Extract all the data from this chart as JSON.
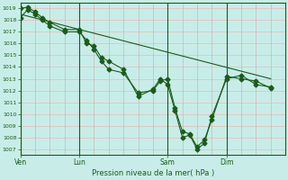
{
  "title": "",
  "xlabel": "Pression niveau de la mer( hPa )",
  "ylim": [
    1006.5,
    1019.5
  ],
  "yticks": [
    1007,
    1008,
    1009,
    1010,
    1011,
    1012,
    1013,
    1014,
    1015,
    1016,
    1017,
    1018,
    1019
  ],
  "bg_color": "#c8ede8",
  "grid_color_h": "#e8b8b8",
  "grid_color_v": "#c8b8b8",
  "line_color": "#1a5c1a",
  "xtick_labels": [
    "Ven",
    "Lun",
    "Sam",
    "Dim"
  ],
  "xtick_pos": [
    0,
    24,
    60,
    84
  ],
  "xlim": [
    0,
    108
  ],
  "line1_x": [
    0,
    3,
    6,
    9,
    12,
    18,
    24,
    27,
    30,
    33,
    36,
    42,
    48,
    54,
    57,
    60,
    63,
    66,
    69,
    72,
    75,
    78,
    84,
    90,
    96,
    102
  ],
  "line1_y": [
    1019.0,
    1019.1,
    1018.7,
    1018.2,
    1017.8,
    1017.2,
    1017.2,
    1016.0,
    1015.8,
    1014.8,
    1014.5,
    1013.8,
    1011.5,
    1012.1,
    1013.0,
    1012.5,
    1010.3,
    1008.0,
    1008.2,
    1007.0,
    1007.5,
    1009.8,
    1013.0,
    1013.3,
    1012.5,
    1012.3
  ],
  "line2_x": [
    0,
    3,
    6,
    9,
    12,
    18,
    24,
    27,
    30,
    33,
    36,
    42,
    48,
    54,
    57,
    60,
    63,
    66,
    69,
    72,
    75,
    78,
    84,
    90,
    96,
    102
  ],
  "line2_y": [
    1018.2,
    1018.9,
    1018.5,
    1018.0,
    1017.5,
    1017.0,
    1017.0,
    1016.3,
    1015.5,
    1014.5,
    1013.8,
    1013.5,
    1011.8,
    1012.0,
    1012.8,
    1013.0,
    1010.5,
    1008.5,
    1008.3,
    1007.2,
    1007.8,
    1009.5,
    1013.2,
    1013.0,
    1012.8,
    1012.2
  ],
  "line3_x": [
    0,
    102
  ],
  "line3_y": [
    1018.5,
    1013.0
  ],
  "vline_pos": [
    0,
    24,
    60,
    84
  ]
}
